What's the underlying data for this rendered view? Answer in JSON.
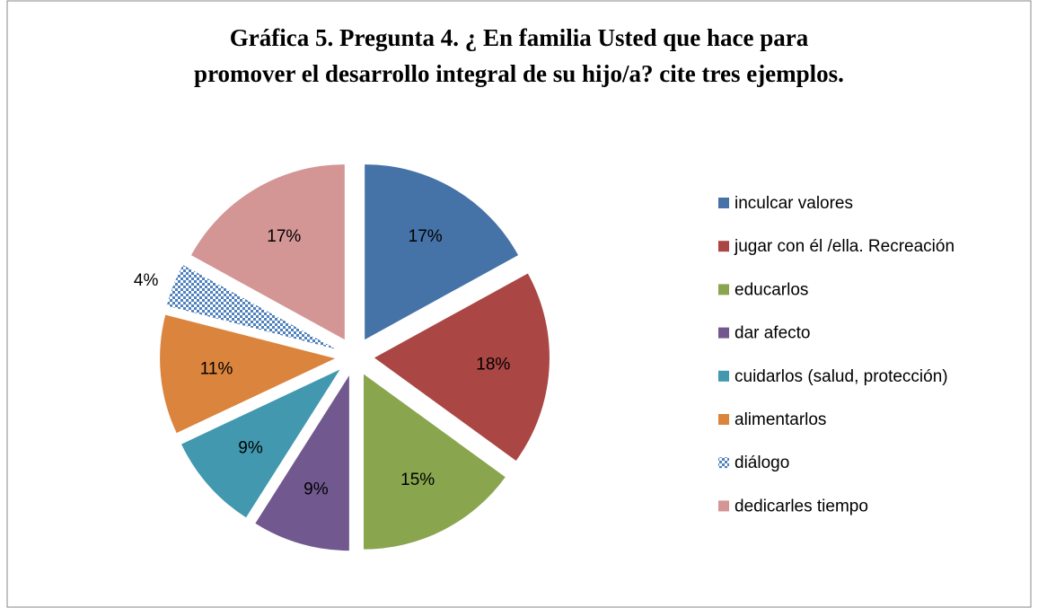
{
  "chart_data": {
    "type": "pie",
    "title": [
      "Gráfica 5. Pregunta 4. ¿ En familia Usted que hace para",
      "promover el desarrollo integral de su hijo/a? cite tres ejemplos."
    ],
    "categories": [
      "inculcar valores",
      "jugar con él /ella. Recreación",
      "educarlos",
      "dar afecto",
      "cuidarlos (salud, protección)",
      "alimentarlos",
      "diálogo",
      "dedicarles tiempo"
    ],
    "values": [
      17,
      18,
      15,
      9,
      9,
      11,
      4,
      17
    ],
    "value_labels": [
      "17%",
      "18%",
      "15%",
      "9%",
      "9%",
      "11%",
      "4%",
      "17%"
    ],
    "colors": [
      "#4572a7",
      "#aa4643",
      "#89a54e",
      "#71588f",
      "#4198af",
      "#db843d",
      "#4f81bd",
      "#d49595"
    ],
    "patterns": [
      null,
      null,
      null,
      null,
      null,
      null,
      "checker",
      null
    ],
    "legend": "right"
  }
}
